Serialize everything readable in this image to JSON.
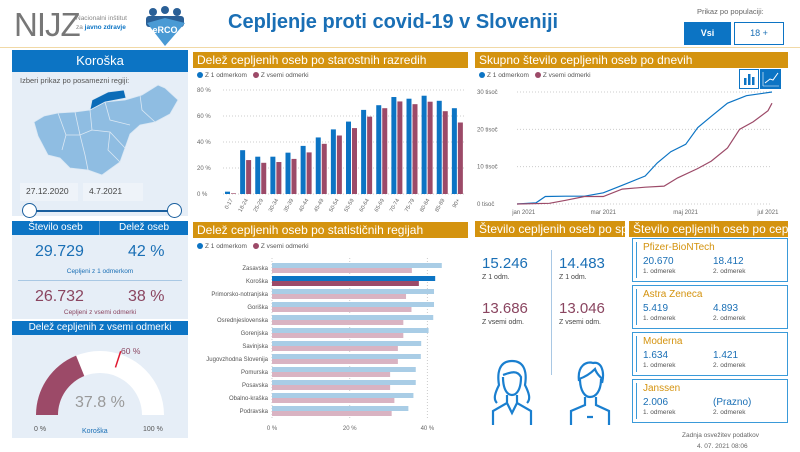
{
  "header": {
    "logo": "NIJZ",
    "logo_sub1": "Nacionalni inštitut",
    "logo_sub2_a": "za ",
    "logo_sub2_b": "javno zdravje",
    "erco": "eRCO",
    "title": "Cepljenje proti covid-19 v Sloveniji",
    "population_label": "Prikaz po populaciji:",
    "pop_options": [
      "Vsi",
      "18 +"
    ],
    "pop_selected": "Vsi"
  },
  "colors": {
    "blue": "#0c74c4",
    "red": "#9c4a68",
    "gold": "#d4930f",
    "light_blue": "#a9cde6",
    "light_red": "#d9b3c2"
  },
  "region_panel": {
    "title": "Koroška",
    "prompt": "Izberi prikaz po posamezni regiji:",
    "date_from": "27.12.2020",
    "date_to": "4.7.2021",
    "col1": "Število oseb",
    "col2": "Delež oseb",
    "first_count": "29.729",
    "first_pct": "42 %",
    "first_label": "Cepljeni z 1 odmerkom",
    "all_count": "26.732",
    "all_pct": "38 %",
    "all_label": "Cepljeni z vsemi odmerki"
  },
  "gauge": {
    "title": "Delež cepljenih z vsemi odmerki",
    "value": 37.8,
    "value_label": "37.8 %",
    "target": 60,
    "target_label": "60 %",
    "min_label": "0 %",
    "max_label": "100 %",
    "region": "Koroška"
  },
  "legend": {
    "first": "Z 1 odmerkom",
    "all": "Z vsemi odmerki"
  },
  "chart_data": [
    {
      "type": "bar",
      "title": "Delež cepljenih oseb po starostnih razredih",
      "categories": [
        "0-17",
        "18-24",
        "25-29",
        "30-34",
        "35-39",
        "40-44",
        "45-49",
        "50-54",
        "55-59",
        "60-64",
        "65-69",
        "70-74",
        "75-79",
        "80-84",
        "85-89",
        "90+"
      ],
      "series": [
        {
          "name": "Z 1 odmerkom",
          "values": [
            1.8,
            33.7,
            28.7,
            28.7,
            31.8,
            37,
            43.5,
            49.7,
            55.7,
            64.7,
            68.3,
            74.6,
            73.3,
            75.6,
            71.7,
            66
          ]
        },
        {
          "name": "Z vsemi odmerki",
          "values": [
            0.5,
            26.1,
            24,
            24.6,
            27,
            32,
            38.6,
            45,
            50.7,
            59.5,
            66,
            71.2,
            69.1,
            71,
            63.7,
            55
          ]
        }
      ],
      "ylim": [
        0,
        80
      ],
      "yticks": [
        "0 %",
        "20 %",
        "40 %",
        "60 %",
        "80 %"
      ],
      "grid": true,
      "legend": "top-left"
    },
    {
      "type": "line",
      "title": "Skupno število cepljenih oseb po dnevih",
      "x_ticks": [
        "jan 2021",
        "mar 2021",
        "maj 2021",
        "jul 2021"
      ],
      "yticks": [
        "0 tisoč",
        "10 tisoč",
        "20 tisoč",
        "30 tisoč"
      ],
      "ylim": [
        0,
        30
      ],
      "xlim": [
        "2020-12-27",
        "2021-07-04"
      ],
      "series": [
        {
          "name": "Z 1 odmerkom",
          "points": [
            [
              "2020-12-27",
              0
            ],
            [
              "2021-01-10",
              0.3
            ],
            [
              "2021-01-17",
              2
            ],
            [
              "2021-02-01",
              2.1
            ],
            [
              "2021-02-15",
              2.1
            ],
            [
              "2021-03-01",
              3
            ],
            [
              "2021-03-15",
              5
            ],
            [
              "2021-04-01",
              7.5
            ],
            [
              "2021-04-10",
              11
            ],
            [
              "2021-04-20",
              14
            ],
            [
              "2021-05-01",
              16
            ],
            [
              "2021-05-10",
              20.5
            ],
            [
              "2021-05-20",
              23.5
            ],
            [
              "2021-06-01",
              27
            ],
            [
              "2021-06-15",
              29
            ],
            [
              "2021-07-04",
              30
            ]
          ]
        },
        {
          "name": "Z vsemi odmerki",
          "points": [
            [
              "2020-12-27",
              0
            ],
            [
              "2021-01-20",
              0.2
            ],
            [
              "2021-02-01",
              1
            ],
            [
              "2021-02-15",
              2
            ],
            [
              "2021-03-01",
              2
            ],
            [
              "2021-03-15",
              4
            ],
            [
              "2021-04-01",
              4.5
            ],
            [
              "2021-04-15",
              4.8
            ],
            [
              "2021-04-25",
              7
            ],
            [
              "2021-05-10",
              9.5
            ],
            [
              "2021-05-20",
              11.5
            ],
            [
              "2021-06-01",
              15
            ],
            [
              "2021-06-10",
              20
            ],
            [
              "2021-06-20",
              22
            ],
            [
              "2021-07-01",
              25
            ],
            [
              "2021-07-04",
              27
            ]
          ]
        }
      ],
      "legend": "top-left",
      "grid": true
    },
    {
      "type": "bar",
      "orientation": "horizontal",
      "title": "Delež cepljenih oseb po statističnih regijah",
      "categories": [
        "Zasavska",
        "Koroška",
        "Primorsko-notranjska",
        "Goriška",
        "Osrednjeslovenska",
        "Gorenjska",
        "Savinjska",
        "Jugovzhodna Slovenija",
        "Pomurska",
        "Posavska",
        "Obalno-kraška",
        "Podravska"
      ],
      "highlight": "Koroška",
      "series": [
        {
          "name": "Z 1 odmerkom",
          "values": [
            43.7,
            42,
            41.7,
            41.7,
            41.5,
            40.3,
            38.4,
            38.3,
            37,
            37,
            36.4,
            35.1
          ]
        },
        {
          "name": "Z vsemi odmerki",
          "values": [
            36,
            37.8,
            34.5,
            35.9,
            33.8,
            33.8,
            32.4,
            32.4,
            30.4,
            30.4,
            31.5,
            30.8
          ]
        }
      ],
      "xlim": [
        0,
        45
      ],
      "xticks": [
        "0 %",
        "20 %",
        "40 %"
      ],
      "grid": true,
      "legend": "top-left"
    }
  ],
  "sex": {
    "title": "Število cepljenih oseb po spolu",
    "female_first": "15.246",
    "female_first_label": "Z 1 odm.",
    "female_all": "13.686",
    "female_all_label": "Z vsemi odm.",
    "male_first": "14.483",
    "male_first_label": "Z 1 odm.",
    "male_all": "13.046",
    "male_all_label": "Z vsemi odm."
  },
  "vaccines": {
    "title": "Število cepljenih oseb po cepivu",
    "dose1": "1. odmerek",
    "dose2": "2. odmerek",
    "items": [
      {
        "name": "Pfizer-BioNTech",
        "d1": "20.670",
        "d2": "18.412"
      },
      {
        "name": "Astra Zeneca",
        "d1": "5.419",
        "d2": "4.893"
      },
      {
        "name": "Moderna",
        "d1": "1.634",
        "d2": "1.421"
      },
      {
        "name": "Janssen",
        "d1": "2.006",
        "d2": "(Prazno)"
      }
    ]
  },
  "footer": {
    "label": "Zadnja osvežitev podatkov",
    "date": "4. 07. 2021 08:06"
  }
}
